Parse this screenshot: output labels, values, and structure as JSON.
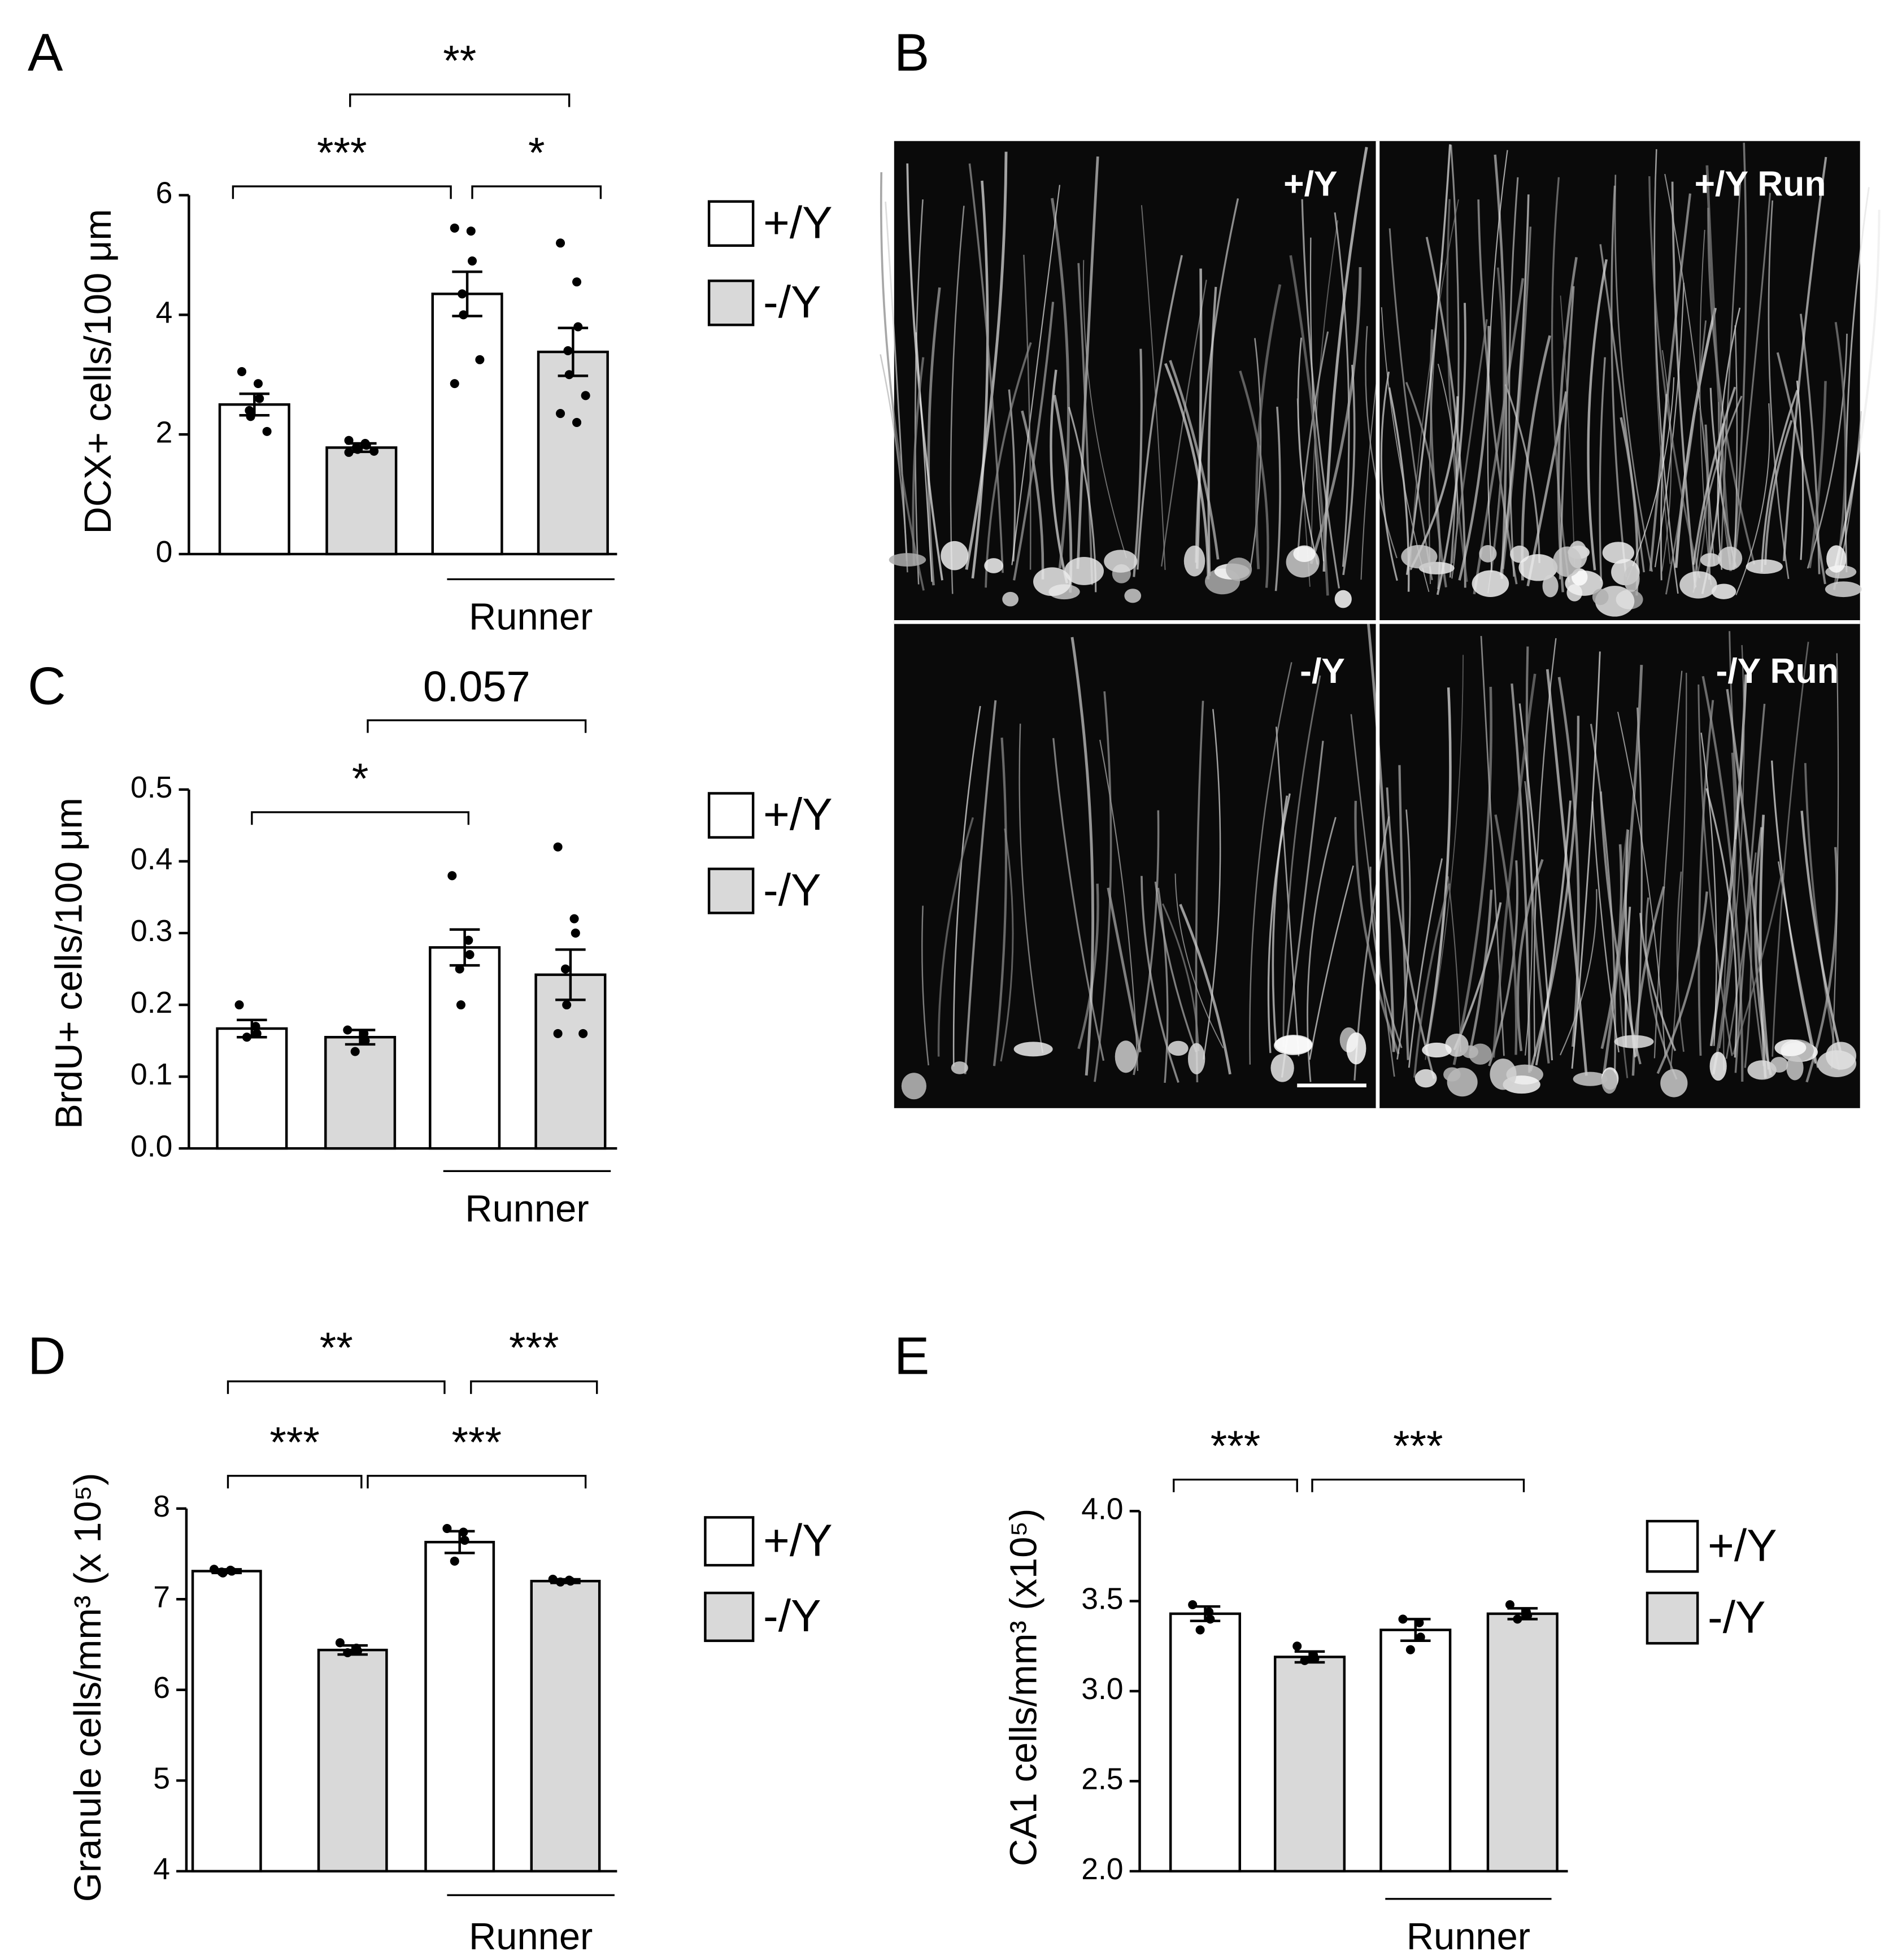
{
  "chart_data": [
    {
      "type": "bar",
      "panel": "A",
      "ylabel": "DCX+ cells/100 μm",
      "categories": [
        null,
        "Runner"
      ],
      "series": [
        {
          "name": "+/Y",
          "color": "#ffffff",
          "values": [
            2.5,
            4.35
          ],
          "errors": [
            0.18,
            0.37
          ],
          "points": [
            [
              3.05,
              2.85,
              2.6,
              2.4,
              2.3,
              2.05
            ],
            [
              5.45,
              5.4,
              4.9,
              4.35,
              4.0,
              3.25,
              2.85
            ]
          ]
        },
        {
          "name": "-/Y",
          "color": "#d9d9d9",
          "values": [
            1.78,
            3.38
          ],
          "errors": [
            0.07,
            0.4
          ],
          "points": [
            [
              1.9,
              1.85,
              1.82,
              1.78,
              1.75,
              1.72,
              1.7
            ],
            [
              5.2,
              4.55,
              3.8,
              3.4,
              3.0,
              2.65,
              2.35,
              2.2
            ]
          ]
        }
      ],
      "ylim": [
        0,
        6
      ],
      "yticks": [
        0,
        2,
        4,
        6
      ],
      "annotations": [
        "***",
        "*",
        "**"
      ]
    },
    {
      "type": "bar",
      "panel": "C",
      "ylabel": "BrdU+ cells/100 μm",
      "categories": [
        null,
        "Runner"
      ],
      "series": [
        {
          "name": "+/Y",
          "color": "#ffffff",
          "values": [
            0.167,
            0.28
          ],
          "errors": [
            0.012,
            0.025
          ],
          "points": [
            [
              0.2,
              0.17,
              0.16,
              0.155
            ],
            [
              0.38,
              0.29,
              0.27,
              0.25,
              0.2
            ]
          ]
        },
        {
          "name": "-/Y",
          "color": "#d9d9d9",
          "values": [
            0.155,
            0.242
          ],
          "errors": [
            0.01,
            0.035
          ],
          "points": [
            [
              0.165,
              0.16,
              0.15,
              0.135
            ],
            [
              0.42,
              0.32,
              0.3,
              0.25,
              0.2,
              0.16,
              0.16
            ]
          ]
        }
      ],
      "ylim": [
        0,
        0.5
      ],
      "yticks": [
        {
          "value": 0,
          "label": "0.0"
        },
        0.1,
        0.2,
        0.3,
        0.4,
        0.5
      ],
      "annotations": [
        "*",
        "0.057"
      ]
    },
    {
      "type": "bar",
      "panel": "D",
      "ylabel": "Granule cells/mm³ (x 10⁵)",
      "categories": [
        null,
        "Runner"
      ],
      "series": [
        {
          "name": "+/Y",
          "color": "#ffffff",
          "values": [
            7.31,
            7.63
          ],
          "errors": [
            0.02,
            0.12
          ],
          "points": [
            [
              7.33,
              7.32,
              7.31,
              7.3,
              7.29
            ],
            [
              7.78,
              7.74,
              7.65,
              7.42
            ]
          ]
        },
        {
          "name": "-/Y",
          "color": "#d9d9d9",
          "values": [
            6.44,
            7.2
          ],
          "errors": [
            0.05,
            0.02
          ],
          "points": [
            [
              6.52,
              6.46,
              6.43,
              6.41
            ],
            [
              7.22,
              7.21,
              7.2,
              7.19
            ]
          ]
        }
      ],
      "ylim": [
        4,
        8
      ],
      "yticks": [
        4,
        5,
        6,
        7,
        8
      ],
      "annotations": [
        "**",
        "***",
        "***",
        "***"
      ]
    },
    {
      "type": "bar",
      "panel": "E",
      "ylabel": "CA1 cells/mm³ (x10⁵)",
      "categories": [
        null,
        "Runner"
      ],
      "series": [
        {
          "name": "+/Y",
          "color": "#ffffff",
          "values": [
            3.43,
            3.34
          ],
          "errors": [
            0.04,
            0.06
          ],
          "points": [
            [
              3.48,
              3.44,
              3.4,
              3.34
            ],
            [
              3.4,
              3.38,
              3.3,
              3.23
            ]
          ]
        },
        {
          "name": "-/Y",
          "color": "#d9d9d9",
          "values": [
            3.19,
            3.43
          ],
          "errors": [
            0.03,
            0.03
          ],
          "points": [
            [
              3.25,
              3.2,
              3.18,
              3.17
            ],
            [
              3.48,
              3.44,
              3.42,
              3.4
            ]
          ]
        }
      ],
      "ylim": [
        2,
        4
      ],
      "yticks": [
        {
          "value": 2,
          "label": "2.0"
        },
        {
          "value": 2.5,
          "label": "2.5"
        },
        {
          "value": 3,
          "label": "3.0"
        },
        {
          "value": 3.5,
          "label": "3.5"
        },
        {
          "value": 4,
          "label": "4.0"
        }
      ],
      "annotations": [
        "***",
        "***"
      ]
    }
  ],
  "panel_b": {
    "panel": "B",
    "images": [
      "+/Y",
      "+/Y Run",
      "-/Y",
      "-/Y Run"
    ]
  }
}
